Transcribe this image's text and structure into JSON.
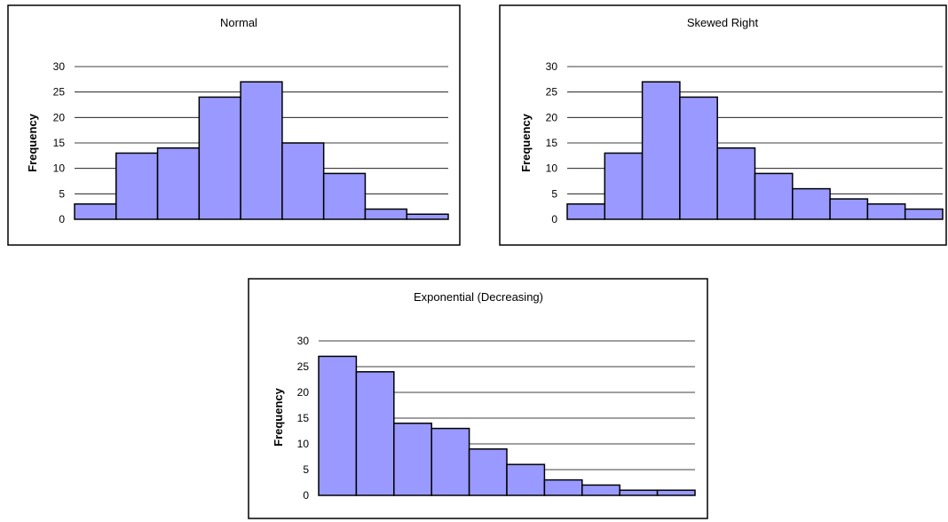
{
  "chart_data": [
    {
      "type": "bar",
      "title": "Normal",
      "xlabel": "",
      "ylabel": "Frequency",
      "ylim": [
        0,
        30
      ],
      "yticks": [
        0,
        5,
        10,
        15,
        20,
        25,
        30
      ],
      "grid": true,
      "values": [
        3,
        13,
        14,
        24,
        27,
        15,
        9,
        2,
        1
      ]
    },
    {
      "type": "bar",
      "title": "Skewed Right",
      "xlabel": "",
      "ylabel": "Frequency",
      "ylim": [
        0,
        30
      ],
      "yticks": [
        0,
        5,
        10,
        15,
        20,
        25,
        30
      ],
      "grid": true,
      "values": [
        3,
        13,
        27,
        24,
        14,
        9,
        6,
        4,
        3,
        2
      ]
    },
    {
      "type": "bar",
      "title": "Exponential (Decreasing)",
      "xlabel": "",
      "ylabel": "Frequency",
      "ylim": [
        0,
        30
      ],
      "yticks": [
        0,
        5,
        10,
        15,
        20,
        25,
        30
      ],
      "grid": true,
      "values": [
        27,
        24,
        14,
        13,
        9,
        6,
        3,
        2,
        1,
        1
      ]
    }
  ],
  "colors": {
    "bar_fill": "#9999ff",
    "bar_stroke": "#000000",
    "grid": "#000000",
    "frame": "#000000"
  }
}
